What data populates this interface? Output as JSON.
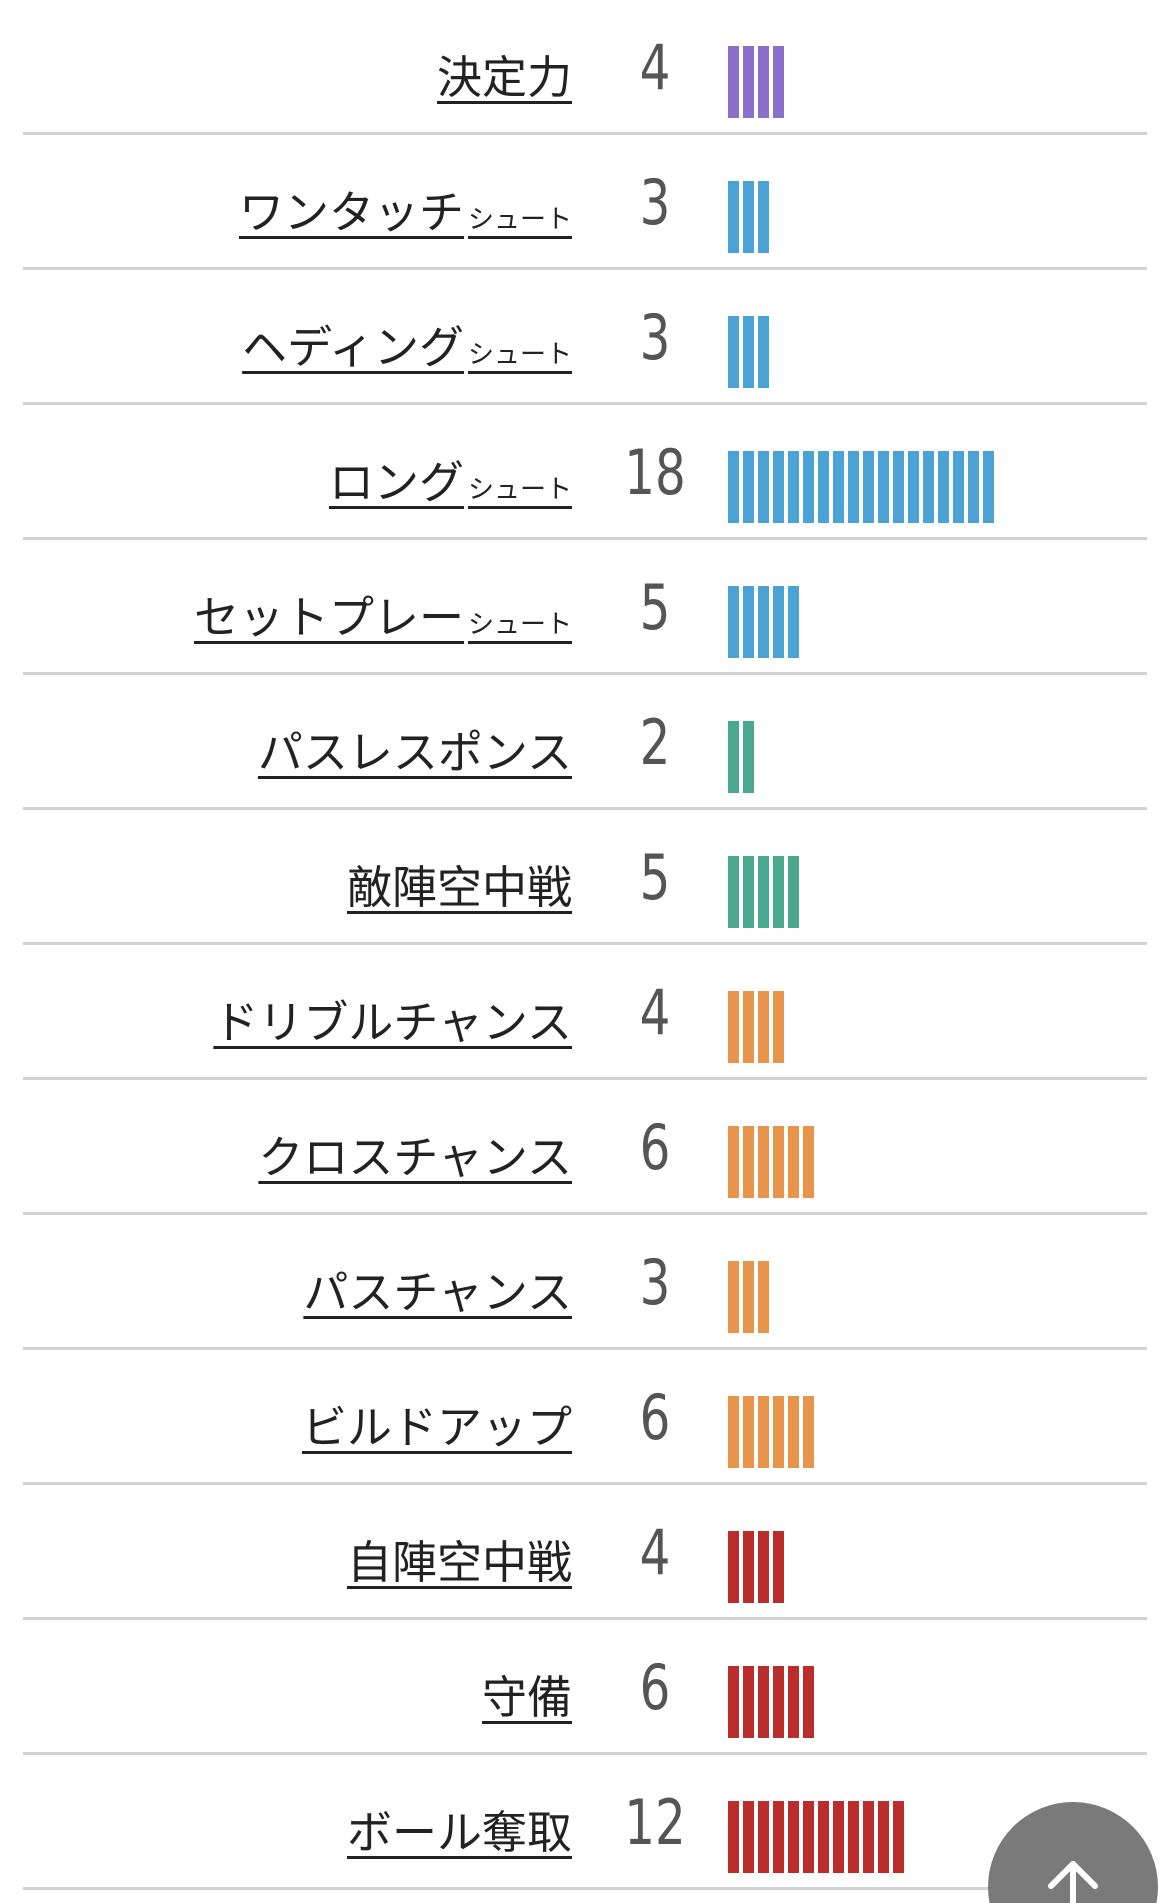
{
  "colors": {
    "finishing": "#8c6fcc",
    "shot": "#4aa3d4",
    "support": "#4aa88e",
    "chance": "#e8944a",
    "defense": "#bb2d2d"
  },
  "stats": [
    {
      "label": "決定力",
      "suffix": "",
      "value": "4",
      "count": 4,
      "category": "finishing"
    },
    {
      "label": "ワンタッチ",
      "suffix": "シュート",
      "value": "3",
      "count": 3,
      "category": "shot"
    },
    {
      "label": "ヘディング",
      "suffix": "シュート",
      "value": "3",
      "count": 3,
      "category": "shot"
    },
    {
      "label": "ロング",
      "suffix": "シュート",
      "value": "18",
      "count": 18,
      "category": "shot"
    },
    {
      "label": "セットプレー",
      "suffix": "シュート",
      "value": "5",
      "count": 5,
      "category": "shot"
    },
    {
      "label": "パスレスポンス",
      "suffix": "",
      "value": "2",
      "count": 2,
      "category": "support"
    },
    {
      "label": "敵陣空中戦",
      "suffix": "",
      "value": "5",
      "count": 5,
      "category": "support"
    },
    {
      "label": "ドリブルチャンス",
      "suffix": "",
      "value": "4",
      "count": 4,
      "category": "chance"
    },
    {
      "label": "クロスチャンス",
      "suffix": "",
      "value": "6",
      "count": 6,
      "category": "chance"
    },
    {
      "label": "パスチャンス",
      "suffix": "",
      "value": "3",
      "count": 3,
      "category": "chance"
    },
    {
      "label": "ビルドアップ",
      "suffix": "",
      "value": "6",
      "count": 6,
      "category": "chance"
    },
    {
      "label": "自陣空中戦",
      "suffix": "",
      "value": "4",
      "count": 4,
      "category": "defense"
    },
    {
      "label": "守備",
      "suffix": "",
      "value": "6",
      "count": 6,
      "category": "defense"
    },
    {
      "label": "ボール奪取",
      "suffix": "",
      "value": "12",
      "count": 12,
      "category": "defense"
    }
  ],
  "scroll_top": {
    "icon": "arrow-up-icon"
  }
}
